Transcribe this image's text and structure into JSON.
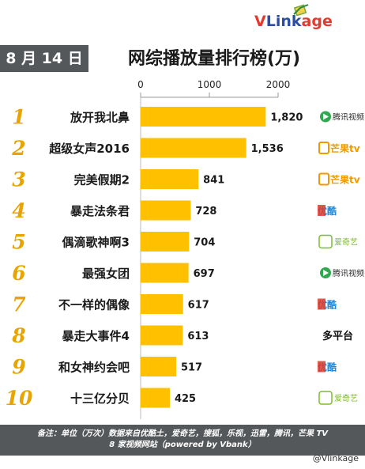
{
  "brand": {
    "v": "V",
    "link": "Link",
    "age": "age"
  },
  "date_label": "8 月 14 日",
  "title": "网综播放量排行榜(万)",
  "chart_data": {
    "type": "bar",
    "orientation": "horizontal",
    "xlim": [
      0,
      2000
    ],
    "ticks": [
      0,
      1000,
      2000
    ],
    "tick_labels": [
      "0",
      "1000",
      "2000"
    ],
    "ranks": [
      "1",
      "2",
      "3",
      "4",
      "5",
      "6",
      "7",
      "8",
      "9",
      "10"
    ],
    "categories": [
      "放开我北鼻",
      "超级女声2016",
      "完美假期2",
      "暴走法条君",
      "偶滴歌神啊3",
      "最强女团",
      "不一样的偶像",
      "暴走大事件4",
      "和女神约会吧",
      "十三亿分贝"
    ],
    "values": [
      1820,
      1536,
      841,
      728,
      704,
      697,
      617,
      613,
      517,
      425
    ],
    "value_labels": [
      "1,820",
      "1,536",
      "841",
      "728",
      "704",
      "697",
      "617",
      "613",
      "517",
      "425"
    ],
    "platforms": [
      "腾讯视频",
      "芒果tv",
      "芒果tv",
      "优酷",
      "爱奇艺",
      "腾讯视频",
      "优酷",
      "多平台",
      "优酷",
      "爱奇艺"
    ],
    "platform_icons": [
      "tencent-icon",
      "mango-icon",
      "mango-icon",
      "youku-icon",
      "iqiyi-icon",
      "tencent-icon",
      "youku-icon",
      "",
      "youku-icon",
      "iqiyi-icon"
    ],
    "bar_color": "#ffc000",
    "rank_color": "#e8a400"
  },
  "footer": {
    "line1": "备注：单位（万次）数据来自优酷土，爱奇艺，搜狐，乐视，迅雷，腾讯，芒果 TV",
    "line2": "8 家视频网站（powered by Vbank）"
  },
  "watermark": "@Vlinkage"
}
